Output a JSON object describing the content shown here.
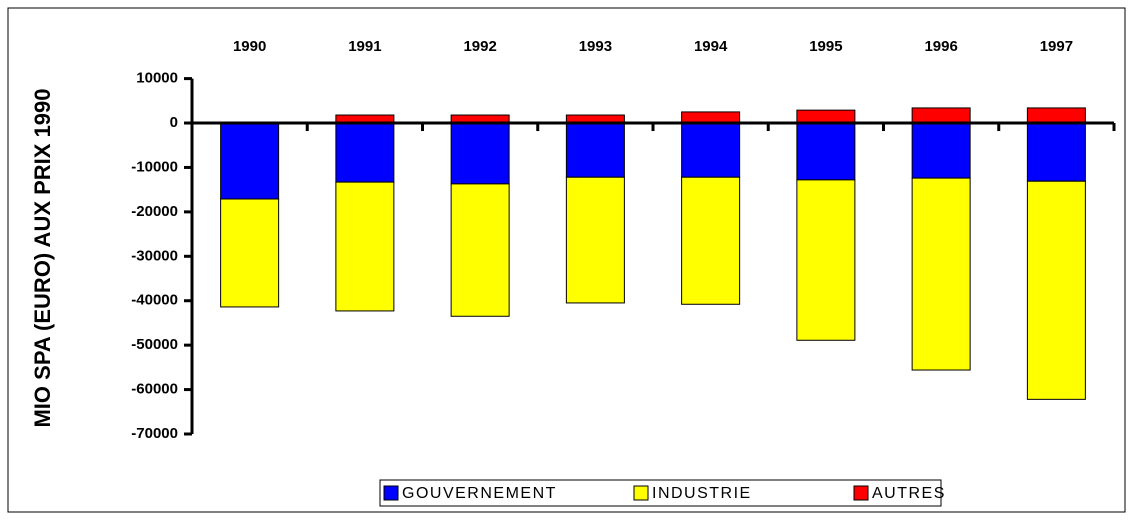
{
  "chart_data": {
    "type": "bar",
    "stacked": true,
    "y_label": "MIO SPA (EURO) AUX PRIX 1990",
    "categories": [
      "1990",
      "1991",
      "1992",
      "1993",
      "1994",
      "1995",
      "1996",
      "1997"
    ],
    "series": [
      {
        "name": "GOUVERNEMENT",
        "color": "#0000ff",
        "values": [
          -17100,
          -13300,
          -13700,
          -12200,
          -12200,
          -12800,
          -12400,
          -13100
        ]
      },
      {
        "name": "INDUSTRIE",
        "color": "#ffff00",
        "values": [
          -24300,
          -29000,
          -29800,
          -28300,
          -28600,
          -36100,
          -43200,
          -49100
        ]
      },
      {
        "name": "AUTRES",
        "color": "#ff0000",
        "values": [
          0,
          1800,
          1800,
          1800,
          2500,
          2900,
          3400,
          3400
        ]
      }
    ],
    "ylim": [
      -70000,
      10000
    ],
    "yticks": [
      10000,
      0,
      -10000,
      -20000,
      -30000,
      -40000,
      -50000,
      -60000,
      -70000
    ],
    "legend": "bottom"
  }
}
